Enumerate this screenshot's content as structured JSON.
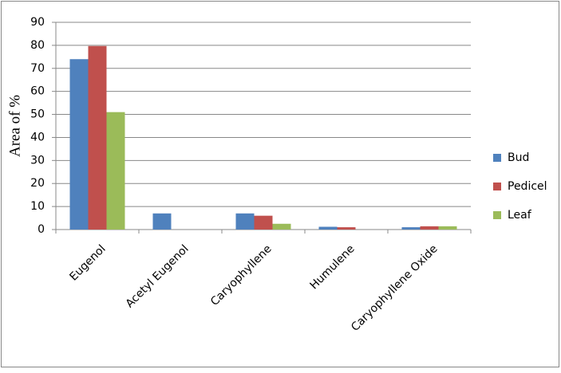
{
  "chart_data": {
    "type": "bar",
    "y_label": "Area of %",
    "categories": [
      "Eugenol",
      "Acetyl Eugenol",
      "Caryophyllene",
      "Humulene",
      "Caryophyllene Oxide"
    ],
    "series": [
      {
        "name": "Bud",
        "color": "#4f81bd",
        "values": [
          74,
          7,
          7,
          1.2,
          1
        ]
      },
      {
        "name": "Pedicel",
        "color": "#c0504d",
        "values": [
          79.7,
          0,
          6,
          1,
          1.4
        ]
      },
      {
        "name": "Leaf",
        "color": "#9bbb59",
        "values": [
          51,
          0,
          2.5,
          0,
          1.4
        ]
      }
    ],
    "ylim": [
      0,
      90
    ],
    "yticks": [
      0,
      10,
      20,
      30,
      40,
      50,
      60,
      70,
      80,
      90
    ],
    "grid": true,
    "legend": "right"
  }
}
